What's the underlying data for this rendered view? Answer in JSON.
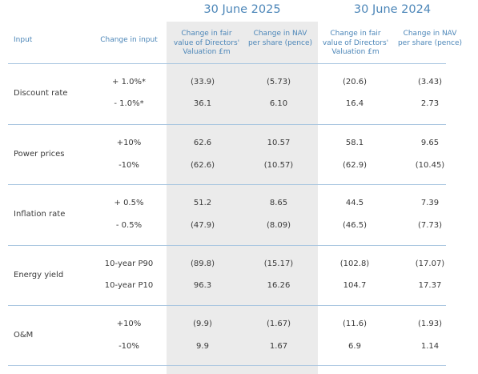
{
  "periods": [
    "30 June 2025",
    "30 June 2024"
  ],
  "headers": {
    "input": "Input",
    "change_in_input": "Change in input",
    "fair_value": "Change in fair value of Directors' Valuation £m",
    "nav": "Change in NAV per share (pence)"
  },
  "rows": [
    {
      "label": "Discount rate",
      "lines": [
        {
          "change": "+ 1.0%*",
          "fv_2025": "(33.9)",
          "nav_2025": "(5.73)",
          "fv_2024": "(20.6)",
          "nav_2024": "(3.43)"
        },
        {
          "change": "- 1.0%*",
          "fv_2025": "36.1",
          "nav_2025": "6.10",
          "fv_2024": "16.4",
          "nav_2024": "2.73"
        }
      ]
    },
    {
      "label": "Power prices",
      "lines": [
        {
          "change": "+10%",
          "fv_2025": "62.6",
          "nav_2025": "10.57",
          "fv_2024": "58.1",
          "nav_2024": "9.65"
        },
        {
          "change": "-10%",
          "fv_2025": "(62.6)",
          "nav_2025": "(10.57)",
          "fv_2024": "(62.9)",
          "nav_2024": "(10.45)"
        }
      ]
    },
    {
      "label": "Inflation rate",
      "lines": [
        {
          "change": "+ 0.5%",
          "fv_2025": "51.2",
          "nav_2025": "8.65",
          "fv_2024": "44.5",
          "nav_2024": "7.39"
        },
        {
          "change": "- 0.5%",
          "fv_2025": "(47.9)",
          "nav_2025": "(8.09)",
          "fv_2024": "(46.5)",
          "nav_2024": "(7.73)"
        }
      ]
    },
    {
      "label": "Energy yield",
      "lines": [
        {
          "change": "10-year P90",
          "fv_2025": "(89.8)",
          "nav_2025": "(15.17)",
          "fv_2024": "(102.8)",
          "nav_2024": "(17.07)"
        },
        {
          "change": "10-year P10",
          "fv_2025": "96.3",
          "nav_2025": "16.26",
          "fv_2024": "104.7",
          "nav_2024": "17.37"
        }
      ]
    },
    {
      "label": "O&M",
      "lines": [
        {
          "change": "+10%",
          "fv_2025": "(9.9)",
          "nav_2025": "(1.67)",
          "fv_2024": "(11.6)",
          "nav_2024": "(1.93)"
        },
        {
          "change": "-10%",
          "fv_2025": "9.9",
          "nav_2025": "1.67",
          "fv_2024": "6.9",
          "nav_2024": "1.14"
        }
      ]
    }
  ],
  "colors": {
    "accent": "#4c86b8",
    "shade": "#ebebeb",
    "rule": "#a9c6e0",
    "text": "#3a3a3a"
  }
}
